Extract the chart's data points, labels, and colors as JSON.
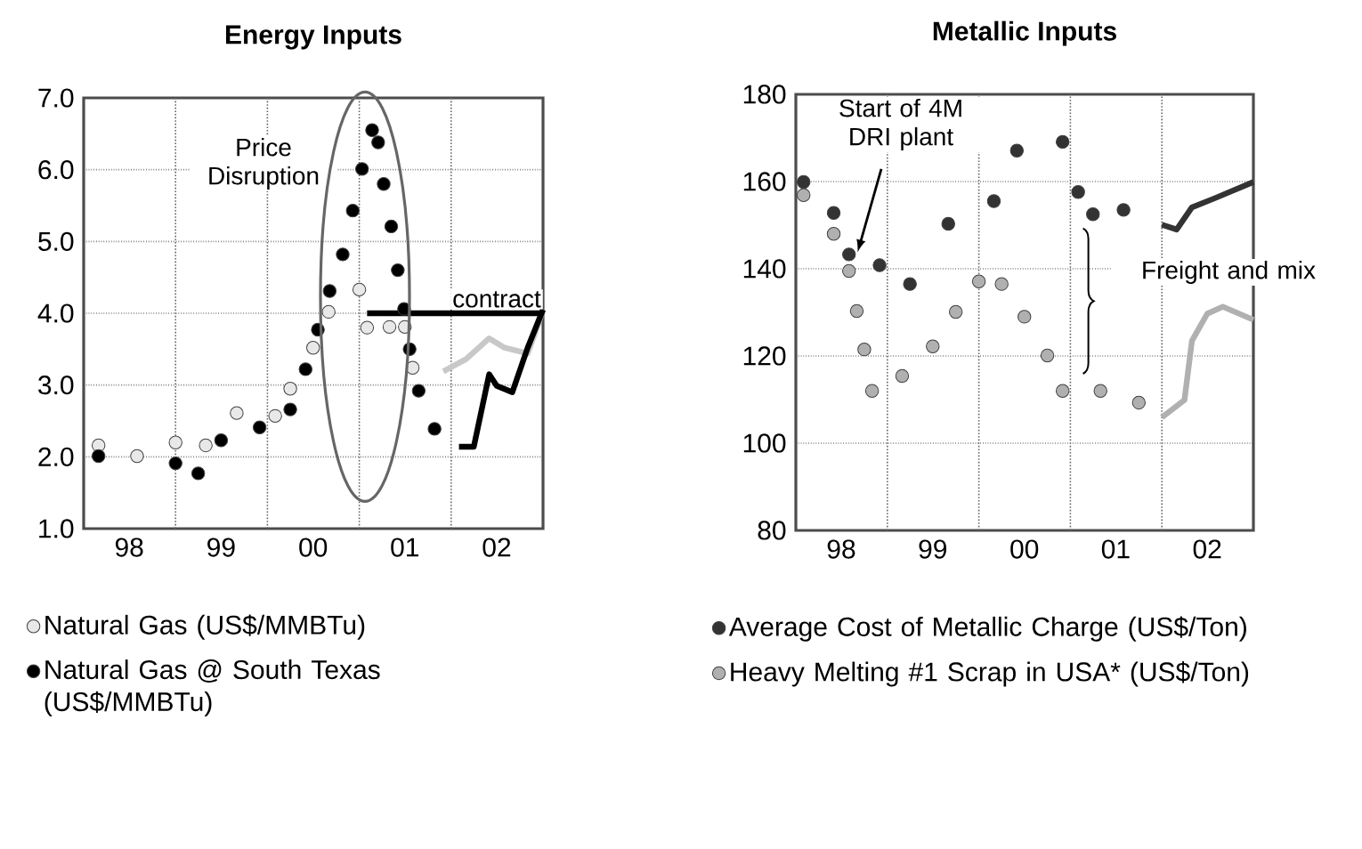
{
  "chart_data": [
    {
      "type": "scatter",
      "title": "Energy Inputs",
      "grid": true,
      "legend": "bottom",
      "xlim": [
        "1998-01",
        "2003-01"
      ],
      "ylim": [
        1,
        7
      ],
      "xticks": [
        {
          "value": "1998-07",
          "label": "98"
        },
        {
          "value": "1999-07",
          "label": "99"
        },
        {
          "value": "2000-07",
          "label": "00"
        },
        {
          "value": "2001-07",
          "label": "01"
        },
        {
          "value": "2002-07",
          "label": "02"
        },
        {
          "value": "1999-01",
          "label": null
        },
        {
          "value": "2000-01",
          "label": null
        },
        {
          "value": "2001-01",
          "label": null
        },
        {
          "value": "2002-01",
          "label": null
        }
      ],
      "yticks": [
        {
          "value": 1,
          "label": "1.0"
        },
        {
          "value": 2,
          "label": "2.0"
        },
        {
          "value": 3,
          "label": "3.0"
        },
        {
          "value": 4,
          "label": "4.0"
        },
        {
          "value": 5,
          "label": "5.0"
        },
        {
          "value": 6,
          "label": "6.0"
        },
        {
          "value": 7,
          "label": "7.0"
        }
      ],
      "annotations": [
        "Price Disruption",
        {
          "text": "contract",
          "x": "2002-07",
          "y": 4.0
        }
      ],
      "series": [
        {
          "type": "line",
          "marker": "none",
          "color": "#c8c8c8",
          "x": [
            "2001-12",
            "2002-03",
            "2002-06",
            "2002-08",
            "2002-11",
            "2002-12",
            "2003-01"
          ],
          "values": [
            3.19,
            3.36,
            3.65,
            3.52,
            3.44,
            3.73,
            4.05
          ]
        },
        {
          "type": "line",
          "marker": "none",
          "color": "#000000",
          "x": [
            "2001-02",
            "2003-01"
          ],
          "values": [
            4.0,
            4.0
          ]
        },
        {
          "type": "line",
          "marker": "none",
          "color": "#000000",
          "x": [
            "2002-02",
            "2002-04",
            "2002-06",
            "2002-07",
            "2002-09",
            "2002-11",
            "2003-01"
          ],
          "values": [
            2.14,
            2.14,
            3.15,
            2.99,
            2.9,
            3.52,
            4.05
          ]
        },
        {
          "name": "Natural Gas (US$/MMBTu)",
          "marker": "circle",
          "color": "#e8e8e8",
          "x": [
            "1998-03",
            "1998-08",
            "1999-01",
            "1999-05",
            "1999-09",
            "2000-02",
            "2000-04",
            "2000-07",
            "2000-09",
            "2001-01",
            "2001-02",
            "2001-05",
            "2001-07",
            "2001-08"
          ],
          "values": [
            2.16,
            2.01,
            2.2,
            2.16,
            2.61,
            2.57,
            2.95,
            3.52,
            4.02,
            4.33,
            3.8,
            3.81,
            3.81,
            3.24
          ]
        },
        {
          "name": "Natural Gas @ South Texas (US$/MMBTu)",
          "marker": "circle",
          "color": "#000000",
          "x": [
            "1998-03",
            "1999-01",
            "1999-04",
            "1999-07",
            "1999-12",
            "2000-04",
            "2000-06",
            "2000-07-20",
            "2000-09-05",
            "2000-10-27",
            "2000-12-06",
            "2001-01-12",
            "2001-02-21",
            "2001-03-17",
            "2001-04-08",
            "2001-05-08",
            "2001-06-03",
            "2001-06-28",
            "2001-07-20",
            "2001-08-25",
            "2001-10-27"
          ],
          "values": [
            2.01,
            1.91,
            1.77,
            2.23,
            2.41,
            2.66,
            3.22,
            3.77,
            4.31,
            4.82,
            5.43,
            6.01,
            6.55,
            6.38,
            5.8,
            5.21,
            4.6,
            4.06,
            3.5,
            2.92,
            2.39
          ]
        }
      ]
    },
    {
      "type": "scatter",
      "title": "Metallic Inputs",
      "grid": true,
      "legend": "bottom",
      "xlim": [
        "1998-01",
        "2003-01"
      ],
      "ylim": [
        80,
        180
      ],
      "xticks": [
        {
          "value": "1998-07",
          "label": "98"
        },
        {
          "value": "1999-07",
          "label": "99"
        },
        {
          "value": "2000-07",
          "label": "00"
        },
        {
          "value": "2001-07",
          "label": "01"
        },
        {
          "value": "2002-07",
          "label": "02"
        },
        {
          "value": "1999-01",
          "label": null
        },
        {
          "value": "2000-01",
          "label": null
        },
        {
          "value": "2001-01",
          "label": null
        },
        {
          "value": "2002-01",
          "label": null
        }
      ],
      "yticks": [
        80,
        100,
        120,
        140,
        160,
        180
      ],
      "annotations": [
        "Start of 4M DRI plant",
        "Freight and mix"
      ],
      "series": [
        {
          "type": "line",
          "marker": "none",
          "color": "#333333",
          "x": [
            "2002-01",
            "2002-03",
            "2002-05",
            "2002-08",
            "2003-01"
          ],
          "values": [
            150.1,
            149.0,
            154.1,
            156.2,
            159.9
          ]
        },
        {
          "type": "line",
          "marker": "none",
          "color": "#b0b0b0",
          "x": [
            "2002-01",
            "2002-04",
            "2002-05",
            "2002-07",
            "2002-09",
            "2003-01"
          ],
          "values": [
            105.9,
            109.9,
            123.5,
            129.7,
            131.3,
            128.3
          ]
        },
        {
          "name": "Average Cost of Metallic Charge (US$/Ton)",
          "marker": "circle",
          "color": "#333333",
          "x": [
            "1998-02",
            "1998-06",
            "1998-08",
            "1998-12",
            "1999-04",
            "1999-09",
            "2000-03",
            "2000-06",
            "2000-12",
            "2001-02",
            "2001-04",
            "2001-08"
          ],
          "values": [
            159.9,
            152.8,
            143.3,
            140.8,
            136.5,
            150.3,
            155.5,
            167.1,
            169.1,
            157.6,
            152.5,
            153.5
          ]
        },
        {
          "name": "Heavy Melting #1 Scrap in USA* (US$/Ton)",
          "marker": "circle",
          "color": "#b0b0b0",
          "x": [
            "1998-02",
            "1998-06",
            "1998-08",
            "1998-09",
            "1998-10",
            "1998-11",
            "1999-03",
            "1999-07",
            "1999-10",
            "2000-01",
            "2000-04",
            "2000-07",
            "2000-10",
            "2000-12",
            "2001-05",
            "2001-10"
          ],
          "values": [
            156.9,
            148.0,
            139.5,
            130.3,
            121.5,
            112.0,
            115.4,
            122.2,
            130.1,
            137.1,
            136.5,
            129.0,
            120.1,
            112.0,
            112.0,
            109.3
          ]
        }
      ]
    }
  ]
}
